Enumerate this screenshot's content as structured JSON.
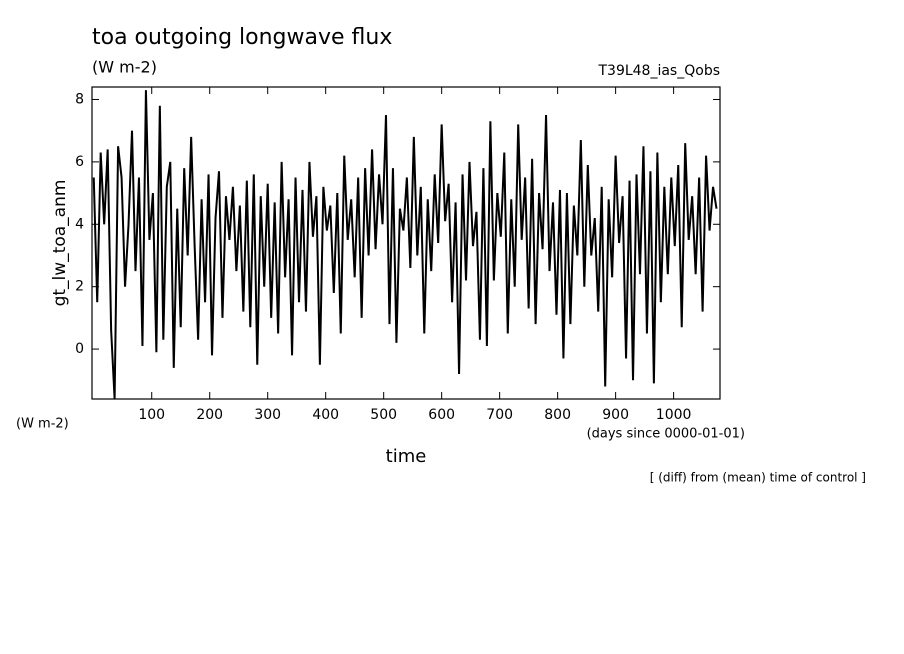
{
  "chart_data": {
    "type": "line",
    "title": "toa outgoing longwave flux",
    "subtitle": "(W m-2)",
    "run_label": "T39L48_ias_Qobs",
    "y_label": "gt_lw_toa_anm",
    "y_units": "(W m-2)",
    "x_label": "time",
    "x_units": "(days since 0000-01-01)",
    "note": "[ (diff) from (mean) time of control ]",
    "color": "#000000",
    "xlim": [
      -3,
      1080
    ],
    "xticks": [
      100,
      200,
      300,
      400,
      500,
      600,
      700,
      800,
      900,
      1000
    ],
    "ylim": [
      -1.6,
      8.4
    ],
    "yticks": [
      0,
      2,
      4,
      6,
      8
    ],
    "x": [
      0,
      6,
      12,
      18,
      24,
      30,
      36,
      42,
      48,
      54,
      60,
      66,
      72,
      78,
      84,
      90,
      96,
      102,
      108,
      114,
      120,
      126,
      132,
      138,
      144,
      150,
      156,
      162,
      168,
      174,
      180,
      186,
      192,
      198,
      204,
      210,
      216,
      222,
      228,
      234,
      240,
      246,
      252,
      258,
      264,
      270,
      276,
      282,
      288,
      294,
      300,
      306,
      312,
      318,
      324,
      330,
      336,
      342,
      348,
      354,
      360,
      366,
      372,
      378,
      384,
      390,
      396,
      402,
      408,
      414,
      420,
      426,
      432,
      438,
      444,
      450,
      456,
      462,
      468,
      474,
      480,
      486,
      492,
      498,
      504,
      510,
      516,
      522,
      528,
      534,
      540,
      546,
      552,
      558,
      564,
      570,
      576,
      582,
      588,
      594,
      600,
      606,
      612,
      618,
      624,
      630,
      636,
      642,
      648,
      654,
      660,
      666,
      672,
      678,
      684,
      690,
      696,
      702,
      708,
      714,
      720,
      726,
      732,
      738,
      744,
      750,
      756,
      762,
      768,
      774,
      780,
      786,
      792,
      798,
      804,
      810,
      816,
      822,
      828,
      834,
      840,
      846,
      852,
      858,
      864,
      870,
      876,
      882,
      888,
      894,
      900,
      906,
      912,
      918,
      924,
      930,
      936,
      942,
      948,
      954,
      960,
      966,
      972,
      978,
      984,
      990,
      996,
      1002,
      1008,
      1014,
      1020,
      1026,
      1032,
      1038,
      1044,
      1050,
      1056,
      1062,
      1068,
      1074
    ],
    "values": [
      5.5,
      1.5,
      6.3,
      4.0,
      6.4,
      0.6,
      -1.6,
      6.5,
      5.5,
      2.0,
      4.0,
      7.0,
      2.5,
      5.5,
      0.1,
      8.3,
      3.5,
      5.0,
      -0.1,
      7.8,
      0.3,
      5.2,
      6.0,
      -0.6,
      4.5,
      0.7,
      5.8,
      3.0,
      6.8,
      3.3,
      0.3,
      4.8,
      1.5,
      5.6,
      -0.2,
      4.2,
      5.7,
      1.0,
      4.9,
      3.5,
      5.2,
      2.5,
      4.6,
      1.2,
      5.4,
      0.7,
      5.6,
      -0.5,
      4.9,
      2.0,
      5.3,
      1.0,
      4.7,
      0.5,
      6.0,
      2.3,
      4.8,
      -0.2,
      5.5,
      1.5,
      5.1,
      1.2,
      6.0,
      3.6,
      4.9,
      -0.5,
      5.2,
      3.8,
      4.6,
      1.8,
      5.0,
      0.5,
      6.2,
      3.5,
      4.8,
      2.3,
      5.5,
      1.0,
      5.8,
      3.0,
      6.4,
      3.2,
      5.6,
      4.0,
      7.5,
      0.8,
      5.8,
      0.2,
      4.5,
      3.8,
      5.5,
      2.6,
      6.8,
      3.0,
      5.2,
      0.5,
      4.8,
      2.5,
      5.6,
      3.4,
      7.2,
      4.1,
      5.3,
      1.5,
      4.7,
      -0.8,
      5.6,
      2.2,
      6.0,
      3.3,
      4.4,
      0.3,
      5.8,
      0.1,
      7.3,
      2.2,
      5.0,
      3.6,
      6.3,
      0.5,
      4.8,
      2.0,
      7.2,
      3.5,
      5.5,
      1.3,
      6.1,
      0.8,
      5.0,
      3.2,
      7.5,
      2.5,
      4.7,
      1.1,
      5.1,
      -0.3,
      5.0,
      0.8,
      4.6,
      3.0,
      6.7,
      2.0,
      5.9,
      3.0,
      4.2,
      1.2,
      5.2,
      -1.2,
      4.8,
      2.3,
      6.2,
      3.4,
      4.9,
      -0.3,
      5.4,
      -1.0,
      5.6,
      2.4,
      6.5,
      0.5,
      5.7,
      -1.1,
      6.3,
      1.5,
      5.2,
      2.4,
      5.5,
      3.3,
      5.9,
      0.7,
      6.6,
      3.5,
      4.9,
      2.4,
      5.5,
      1.2,
      6.2,
      3.8,
      5.2,
      4.5
    ]
  }
}
